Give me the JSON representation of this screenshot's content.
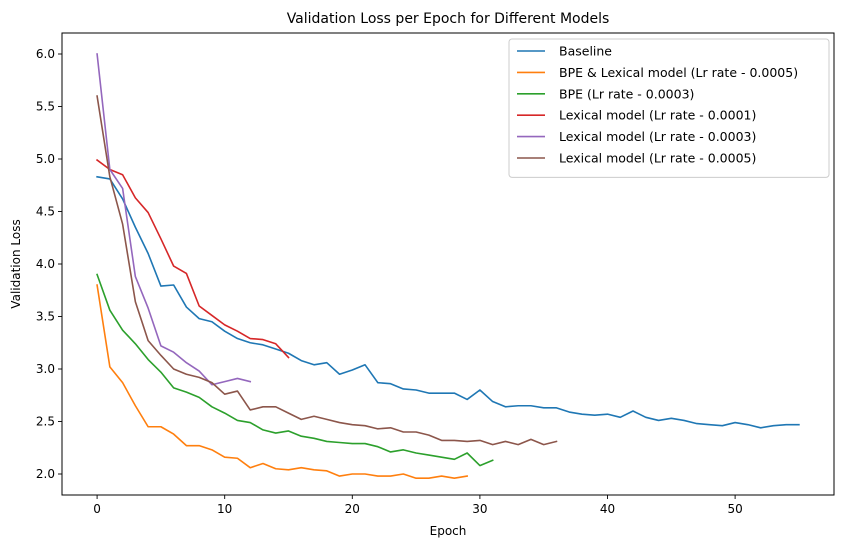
{
  "chart_data": {
    "type": "line",
    "title": "Validation Loss per Epoch for Different Models",
    "xlabel": "Epoch",
    "ylabel": "Validation Loss",
    "xlim": [
      -2.75,
      57.75
    ],
    "ylim": [
      1.8,
      6.2
    ],
    "xticks": [
      0,
      10,
      20,
      30,
      40,
      50
    ],
    "yticks": [
      "2.0",
      "2.5",
      "3.0",
      "3.5",
      "4.0",
      "4.5",
      "5.0",
      "5.5",
      "6.0"
    ],
    "grid": false,
    "legend_position": "upper-right",
    "series": [
      {
        "name": "Baseline",
        "color": "#1f77b4",
        "x": [
          0,
          1,
          2,
          3,
          4,
          5,
          6,
          7,
          8,
          9,
          10,
          11,
          12,
          13,
          14,
          15,
          16,
          17,
          18,
          19,
          20,
          21,
          22,
          23,
          24,
          25,
          26,
          27,
          28,
          29,
          30,
          31,
          32,
          33,
          34,
          35,
          36,
          37,
          38,
          39,
          40,
          41,
          42,
          43,
          44,
          45,
          46,
          47,
          48,
          49,
          50,
          51,
          52,
          53,
          54,
          55
        ],
        "y": [
          4.83,
          4.81,
          4.62,
          4.35,
          4.1,
          3.79,
          3.8,
          3.59,
          3.48,
          3.45,
          3.36,
          3.29,
          3.25,
          3.23,
          3.19,
          3.15,
          3.08,
          3.04,
          3.06,
          2.95,
          2.99,
          3.04,
          2.87,
          2.86,
          2.81,
          2.8,
          2.77,
          2.77,
          2.77,
          2.71,
          2.8,
          2.69,
          2.64,
          2.65,
          2.65,
          2.63,
          2.63,
          2.59,
          2.57,
          2.56,
          2.57,
          2.54,
          2.6,
          2.54,
          2.51,
          2.53,
          2.51,
          2.48,
          2.47,
          2.46,
          2.49,
          2.47,
          2.44,
          2.46,
          2.47,
          2.47
        ]
      },
      {
        "name": "BPE & Lexical model (Lr rate - 0.0005)",
        "color": "#ff7f0e",
        "x": [
          0,
          1,
          2,
          3,
          4,
          5,
          6,
          7,
          8,
          9,
          10,
          11,
          12,
          13,
          14,
          15,
          16,
          17,
          18,
          19,
          20,
          21,
          22,
          23,
          24,
          25,
          26,
          27,
          28,
          29
        ],
        "y": [
          3.8,
          3.02,
          2.87,
          2.65,
          2.45,
          2.45,
          2.38,
          2.27,
          2.27,
          2.23,
          2.16,
          2.15,
          2.06,
          2.1,
          2.05,
          2.04,
          2.06,
          2.04,
          2.03,
          1.98,
          2.0,
          2.0,
          1.98,
          1.98,
          2.0,
          1.96,
          1.96,
          1.98,
          1.96,
          1.98
        ]
      },
      {
        "name": "BPE (Lr rate - 0.0003)",
        "color": "#2ca02c",
        "x": [
          0,
          1,
          2,
          3,
          4,
          5,
          6,
          7,
          8,
          9,
          10,
          11,
          12,
          13,
          14,
          15,
          16,
          17,
          18,
          19,
          20,
          21,
          22,
          23,
          24,
          25,
          26,
          27,
          28,
          29,
          30,
          31
        ],
        "y": [
          3.9,
          3.56,
          3.37,
          3.24,
          3.09,
          2.97,
          2.82,
          2.78,
          2.73,
          2.64,
          2.58,
          2.51,
          2.49,
          2.42,
          2.39,
          2.41,
          2.36,
          2.34,
          2.31,
          2.3,
          2.29,
          2.29,
          2.26,
          2.21,
          2.23,
          2.2,
          2.18,
          2.16,
          2.14,
          2.2,
          2.08,
          2.13
        ]
      },
      {
        "name": "Lexical model (Lr rate - 0.0001)",
        "color": "#d62728",
        "x": [
          0,
          1,
          2,
          3,
          4,
          5,
          6,
          7,
          8,
          9,
          10,
          11,
          12,
          13,
          14,
          15
        ],
        "y": [
          4.99,
          4.9,
          4.85,
          4.63,
          4.49,
          4.24,
          3.98,
          3.91,
          3.6,
          3.51,
          3.42,
          3.36,
          3.29,
          3.28,
          3.24,
          3.11
        ]
      },
      {
        "name": "Lexical model (Lr rate - 0.0003)",
        "color": "#9467bd",
        "x": [
          0,
          1,
          2,
          3,
          4,
          5,
          6,
          7,
          8,
          9,
          10,
          11,
          12
        ],
        "y": [
          6.0,
          4.9,
          4.72,
          3.88,
          3.58,
          3.22,
          3.16,
          3.06,
          2.98,
          2.85,
          2.88,
          2.91,
          2.88
        ]
      },
      {
        "name": "Lexical model (Lr rate - 0.0005)",
        "color": "#8c564b",
        "x": [
          0,
          1,
          2,
          3,
          4,
          5,
          6,
          7,
          8,
          9,
          10,
          11,
          12,
          13,
          14,
          15,
          16,
          17,
          18,
          19,
          20,
          21,
          22,
          23,
          24,
          25,
          26,
          27,
          28,
          29,
          30,
          31,
          32,
          33,
          34,
          35,
          36
        ],
        "y": [
          5.6,
          4.83,
          4.38,
          3.64,
          3.27,
          3.13,
          3.0,
          2.95,
          2.92,
          2.87,
          2.76,
          2.79,
          2.61,
          2.64,
          2.64,
          2.58,
          2.52,
          2.55,
          2.52,
          2.49,
          2.47,
          2.46,
          2.43,
          2.44,
          2.4,
          2.4,
          2.37,
          2.32,
          2.32,
          2.31,
          2.32,
          2.28,
          2.31,
          2.28,
          2.33,
          2.28,
          2.31
        ]
      }
    ]
  }
}
